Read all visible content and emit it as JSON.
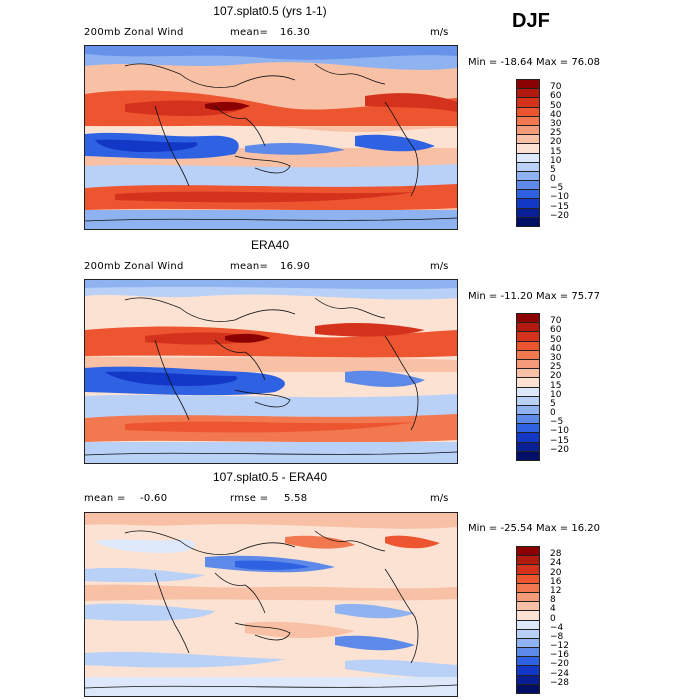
{
  "season": "DJF",
  "panels": [
    {
      "title": "107.splat0.5 (yrs 1-1)",
      "left_label_a": "200mb Zonal Wind",
      "left_label_b": "mean=",
      "left_value": "16.30",
      "units": "m/s",
      "min_label": "Min =",
      "min_value": "-18.64",
      "max_label": "Max =",
      "max_value": "76.08",
      "colorbar_levels": [
        "70",
        "60",
        "50",
        "40",
        "30",
        "25",
        "20",
        "15",
        "10",
        "5",
        "0",
        "−5",
        "−10",
        "−15",
        "−20"
      ],
      "colorbar_colors": [
        "#8b0000",
        "#b31a0f",
        "#d4321c",
        "#ec5530",
        "#f2784f",
        "#f59b79",
        "#f8c0a5",
        "#fbe2d3",
        "#dde8fb",
        "#b9d0f7",
        "#8fb2f0",
        "#5d8ae8",
        "#2f62e3",
        "#1338c8",
        "#081f96",
        "#020f66"
      ]
    },
    {
      "title": "ERA40",
      "left_label_a": "200mb Zonal Wind",
      "left_label_b": "mean=",
      "left_value": "16.90",
      "units": "m/s",
      "min_label": "Min =",
      "min_value": "-11.20",
      "max_label": "Max =",
      "max_value": "75.77",
      "colorbar_levels": [
        "70",
        "60",
        "50",
        "40",
        "30",
        "25",
        "20",
        "15",
        "10",
        "5",
        "0",
        "−5",
        "−10",
        "−15",
        "−20"
      ],
      "colorbar_colors": [
        "#8b0000",
        "#b31a0f",
        "#d4321c",
        "#ec5530",
        "#f2784f",
        "#f59b79",
        "#f8c0a5",
        "#fbe2d3",
        "#dde8fb",
        "#b9d0f7",
        "#8fb2f0",
        "#5d8ae8",
        "#2f62e3",
        "#1338c8",
        "#081f96",
        "#020f66"
      ]
    },
    {
      "title": "107.splat0.5 - ERA40",
      "left_label_a": "mean =",
      "left_label_b": "rmse =",
      "left_value": "-0.60",
      "right_value": "5.58",
      "units": "m/s",
      "min_label": "Min =",
      "min_value": "-25.54",
      "max_label": "Max =",
      "max_value": "16.20",
      "colorbar_levels": [
        "28",
        "24",
        "20",
        "16",
        "12",
        "8",
        "4",
        "0",
        "−4",
        "−8",
        "−12",
        "−16",
        "−20",
        "−24",
        "−28"
      ],
      "colorbar_colors": [
        "#8b0000",
        "#b31a0f",
        "#d4321c",
        "#ec5530",
        "#f2784f",
        "#f59b79",
        "#f8c0a5",
        "#fbe2d3",
        "#dde8fb",
        "#b9d0f7",
        "#8fb2f0",
        "#5d8ae8",
        "#2f62e3",
        "#1338c8",
        "#081f96",
        "#020f66"
      ]
    }
  ]
}
